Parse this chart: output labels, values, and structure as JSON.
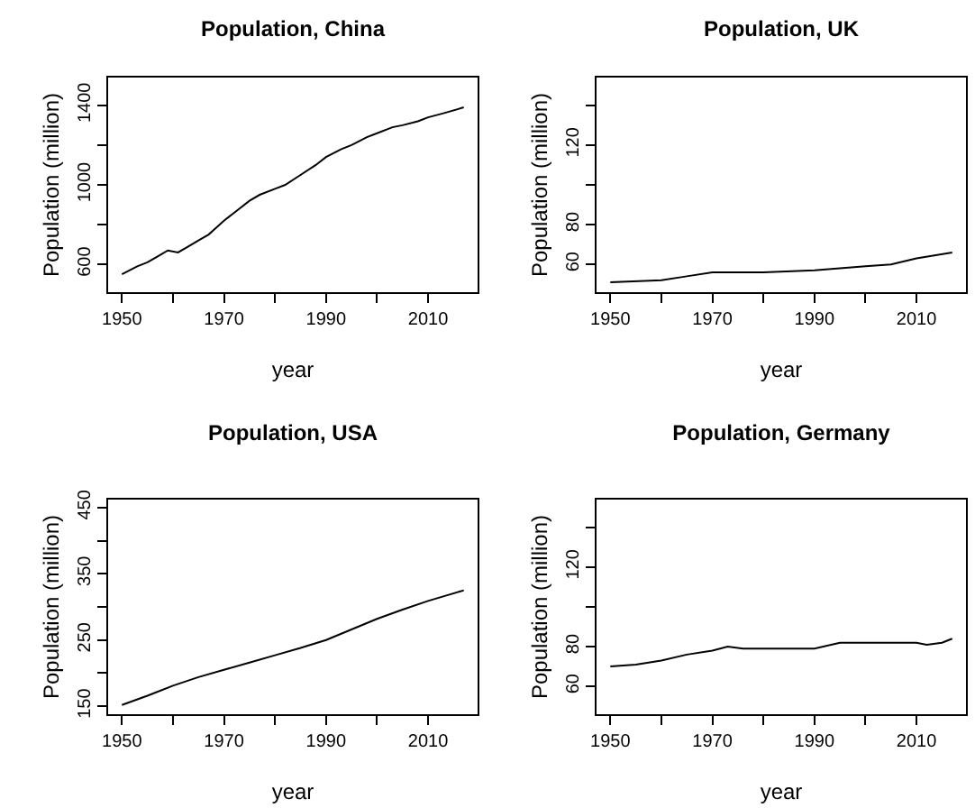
{
  "chart_data": [
    {
      "type": "line",
      "title": "Population, China",
      "xlabel": "year",
      "ylabel": "Population (million)",
      "marker": "none",
      "line_style": "solid",
      "xlim": [
        1947.3,
        2019.7
      ],
      "ylim": [
        460,
        1540
      ],
      "xticks": [
        1950,
        {
          "value": 1960,
          "label": null
        },
        1970,
        {
          "value": 1980,
          "label": null
        },
        1990,
        {
          "value": 2000,
          "label": null
        },
        2010
      ],
      "yticks": [
        600,
        {
          "value": 800,
          "label": null
        },
        1000,
        {
          "value": 1200,
          "label": null
        },
        1400
      ],
      "series": [
        {
          "color": "#000000",
          "x": [
            1950,
            1953,
            1955,
            1957,
            1959,
            1961,
            1963,
            1965,
            1967,
            1970,
            1973,
            1975,
            1977,
            1980,
            1982,
            1985,
            1988,
            1990,
            1993,
            1995,
            1998,
            2000,
            2003,
            2005,
            2008,
            2010,
            2013,
            2017
          ],
          "values": [
            550,
            590,
            610,
            640,
            670,
            660,
            690,
            720,
            750,
            820,
            880,
            920,
            950,
            980,
            1000,
            1050,
            1100,
            1140,
            1180,
            1200,
            1240,
            1260,
            1290,
            1300,
            1320,
            1340,
            1360,
            1390
          ]
        }
      ]
    },
    {
      "type": "line",
      "title": "Population, UK",
      "xlabel": "year",
      "ylabel": "Population (million)",
      "marker": "none",
      "line_style": "solid",
      "xlim": [
        1947.3,
        2019.7
      ],
      "ylim": [
        46,
        154
      ],
      "xticks": [
        1950,
        {
          "value": 1960,
          "label": null
        },
        1970,
        {
          "value": 1980,
          "label": null
        },
        1990,
        {
          "value": 2000,
          "label": null
        },
        2010
      ],
      "yticks": [
        60,
        80,
        {
          "value": 100,
          "label": null
        },
        120,
        {
          "value": 140,
          "label": null
        }
      ],
      "series": [
        {
          "color": "#000000",
          "x": [
            1950,
            1960,
            1965,
            1970,
            1980,
            1990,
            2000,
            2005,
            2010,
            2017
          ],
          "values": [
            51,
            52,
            54,
            56,
            56,
            57,
            59,
            60,
            63,
            66
          ]
        }
      ]
    },
    {
      "type": "line",
      "title": "Population, USA",
      "xlabel": "year",
      "ylabel": "Population (million)",
      "marker": "none",
      "line_style": "solid",
      "xlim": [
        1947.3,
        2019.7
      ],
      "ylim": [
        138,
        462
      ],
      "xticks": [
        1950,
        {
          "value": 1960,
          "label": null
        },
        1970,
        {
          "value": 1980,
          "label": null
        },
        1990,
        {
          "value": 2000,
          "label": null
        },
        2010
      ],
      "yticks": [
        150,
        {
          "value": 200,
          "label": null
        },
        250,
        {
          "value": 300,
          "label": null
        },
        350,
        {
          "value": 400,
          "label": null
        },
        450
      ],
      "series": [
        {
          "color": "#000000",
          "x": [
            1950,
            1955,
            1960,
            1965,
            1970,
            1975,
            1980,
            1985,
            1990,
            1995,
            2000,
            2005,
            2010,
            2017
          ],
          "values": [
            152,
            166,
            181,
            194,
            205,
            216,
            227,
            238,
            250,
            266,
            282,
            296,
            309,
            325
          ]
        }
      ]
    },
    {
      "type": "line",
      "title": "Population, Germany",
      "xlabel": "year",
      "ylabel": "Population (million)",
      "marker": "none",
      "line_style": "solid",
      "xlim": [
        1947.3,
        2019.7
      ],
      "ylim": [
        46,
        154
      ],
      "xticks": [
        1950,
        {
          "value": 1960,
          "label": null
        },
        1970,
        {
          "value": 1980,
          "label": null
        },
        1990,
        {
          "value": 2000,
          "label": null
        },
        2010
      ],
      "yticks": [
        60,
        80,
        {
          "value": 100,
          "label": null
        },
        120,
        {
          "value": 140,
          "label": null
        }
      ],
      "series": [
        {
          "color": "#000000",
          "x": [
            1950,
            1955,
            1960,
            1965,
            1970,
            1973,
            1976,
            1980,
            1988,
            1990,
            1995,
            1997,
            2010,
            2012,
            2015,
            2017
          ],
          "values": [
            70,
            71,
            73,
            76,
            78,
            80,
            79,
            79,
            79,
            79,
            82,
            82,
            82,
            81,
            82,
            84
          ]
        }
      ]
    }
  ]
}
